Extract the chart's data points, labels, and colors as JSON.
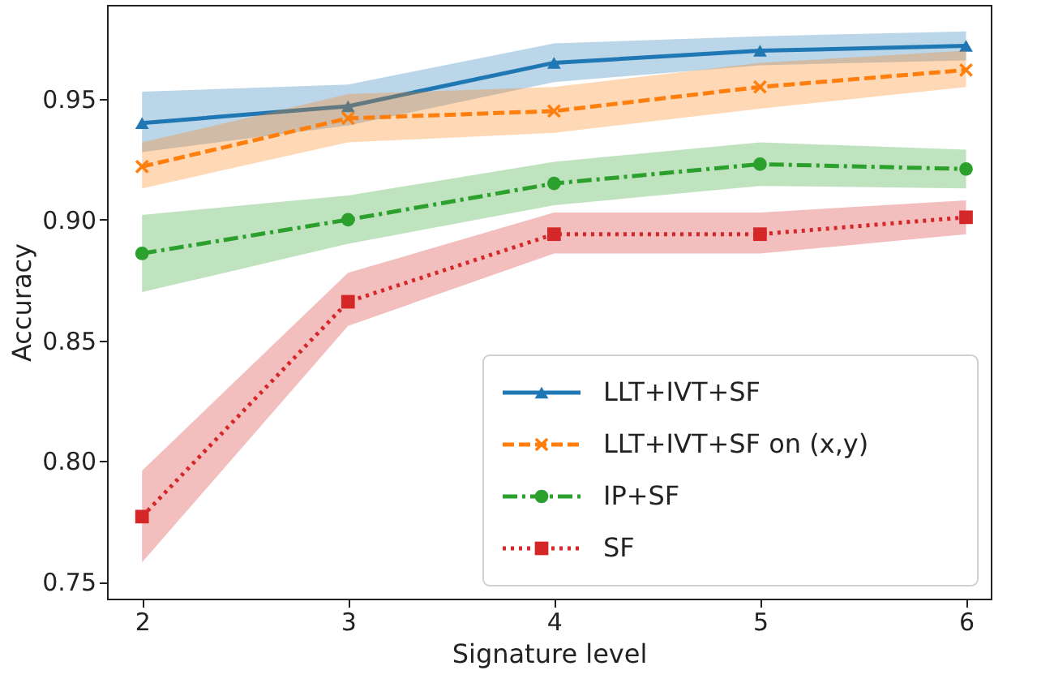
{
  "chart_data": {
    "type": "line",
    "xlabel": "Signature level",
    "ylabel": "Accuracy",
    "x": [
      2,
      3,
      4,
      5,
      6
    ],
    "xlim": [
      1.83,
      6.12
    ],
    "xticks": [
      2,
      3,
      4,
      5,
      6
    ],
    "ylim": [
      0.743,
      0.989
    ],
    "yticks": [
      0.75,
      {
        "value": 0.8,
        "label": "0.80"
      },
      0.85,
      {
        "value": 0.9,
        "label": "0.90"
      },
      0.95
    ],
    "grid": false,
    "legend": "bottom right",
    "series": [
      {
        "name": "LLT+IVT+SF",
        "color": "#1f77b4",
        "marker": "triangle",
        "line_style": "solid",
        "values": [
          0.94,
          0.947,
          0.965,
          0.97,
          0.972
        ],
        "lower": [
          0.928,
          0.939,
          0.957,
          0.964,
          0.966
        ],
        "upper": [
          0.953,
          0.956,
          0.973,
          0.976,
          0.978
        ]
      },
      {
        "name": "LLT+IVT+SF on (x,y)",
        "color": "#ff7f0e",
        "marker": "cross",
        "line_style": "dashed",
        "values": [
          0.922,
          0.942,
          0.945,
          0.955,
          0.962
        ],
        "lower": [
          0.913,
          0.932,
          0.936,
          0.946,
          0.955
        ],
        "upper": [
          0.932,
          0.952,
          0.955,
          0.965,
          0.97
        ]
      },
      {
        "name": "IP+SF",
        "color": "#2ca02c",
        "marker": "circle",
        "line_style": "dashdot",
        "values": [
          0.886,
          0.9,
          0.915,
          0.923,
          0.921
        ],
        "lower": [
          0.87,
          0.89,
          0.906,
          0.914,
          0.913
        ],
        "upper": [
          0.902,
          0.91,
          0.924,
          0.932,
          0.929
        ]
      },
      {
        "name": "SF",
        "color": "#d62728",
        "marker": "square",
        "line_style": "dotted",
        "values": [
          0.777,
          0.866,
          0.894,
          0.894,
          0.901
        ],
        "lower": [
          0.758,
          0.856,
          0.886,
          0.886,
          0.894
        ],
        "upper": [
          0.796,
          0.878,
          0.903,
          0.903,
          0.908
        ]
      }
    ]
  }
}
